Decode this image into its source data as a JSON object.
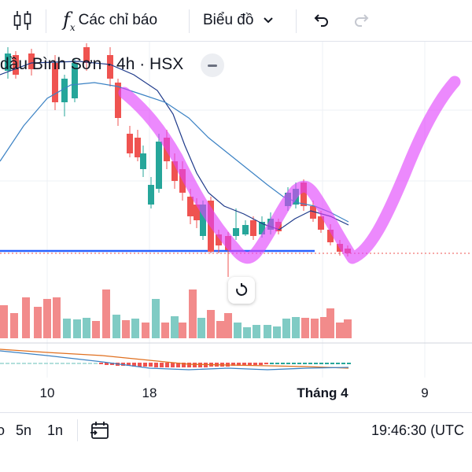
{
  "toolbar": {
    "indicators_label": "Các chỉ báo",
    "chart_type_label": "Biểu đồ",
    "icons": [
      "candles-icon",
      "function-icon",
      "chevron-down-icon",
      "undo-icon",
      "redo-icon"
    ]
  },
  "legend": {
    "title": "dầu Bình Sơn · 4h · HSX"
  },
  "x_axis": {
    "labels": [
      "10",
      "18",
      "Tháng 4",
      "9"
    ]
  },
  "bottom_bar": {
    "range_5d": "5n",
    "range_1d": "1n",
    "time": "19:46:30 (UTC"
  },
  "colors": {
    "up": "#26a69a",
    "down": "#ef5350",
    "support_line": "#2962ff",
    "highlighter": "#e040fb",
    "ma_fast": "#1e3a8a",
    "ma_slow": "#3b82c4"
  }
}
